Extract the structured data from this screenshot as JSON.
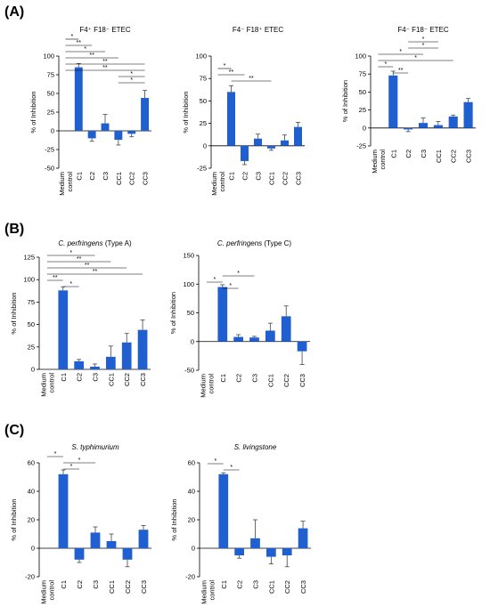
{
  "panels": [
    {
      "label": "(A)"
    },
    {
      "label": "(B)"
    },
    {
      "label": "(C)"
    }
  ],
  "colors": {
    "bar": "#1f5fd0",
    "axis": "#000000"
  },
  "chart_data": [
    {
      "type": "bar",
      "panel": "A",
      "title": "F4⁺ F18⁻ ETEC",
      "title_italic": "",
      "ylabel": "% of Inhibition",
      "categories": [
        "Medium control",
        "C1",
        "C2",
        "C3",
        "CC1",
        "CC2",
        "CC3"
      ],
      "values": [
        0,
        85,
        -10,
        10,
        -12,
        -4,
        44
      ],
      "errors": [
        0,
        5,
        4,
        12,
        7,
        4,
        10
      ],
      "ylim": [
        -50,
        100
      ],
      "yticks": [
        -50,
        -25,
        0,
        25,
        50,
        75,
        100
      ],
      "significance": [
        {
          "from": 0,
          "to": 1,
          "label": "*"
        },
        {
          "from": 0,
          "to": 2,
          "label": "**"
        },
        {
          "from": 0,
          "to": 3,
          "label": "*"
        },
        {
          "from": 0,
          "to": 4,
          "label": "**"
        },
        {
          "from": 0,
          "to": 6,
          "label": "**"
        },
        {
          "from": 0,
          "to": 6,
          "label": "**"
        },
        {
          "from": 4,
          "to": 6,
          "label": "*"
        },
        {
          "from": 4,
          "to": 6,
          "label": "*"
        }
      ]
    },
    {
      "type": "bar",
      "panel": "A",
      "title": "F4⁻ F18⁺ ETEC",
      "title_italic": "",
      "ylabel": "% of Inhibition",
      "categories": [
        "Medium control",
        "C1",
        "C2",
        "C3",
        "CC1",
        "CC2",
        "CC3"
      ],
      "values": [
        0,
        60,
        -17,
        8,
        -3,
        6,
        21
      ],
      "errors": [
        0,
        7,
        4,
        5,
        2,
        6,
        5
      ],
      "ylim": [
        -25,
        100
      ],
      "yticks": [
        -25,
        0,
        25,
        50,
        75,
        100
      ],
      "significance": [
        {
          "from": 0,
          "to": 1,
          "label": "*"
        },
        {
          "from": 0,
          "to": 2,
          "label": "**"
        },
        {
          "from": 1,
          "to": 4,
          "label": "**"
        }
      ]
    },
    {
      "type": "bar",
      "panel": "A",
      "title": "F4⁻ F18⁻ ETEC",
      "title_italic": "",
      "ylabel": "% of Inhibition",
      "categories": [
        "Medium control",
        "C1",
        "C2",
        "C3",
        "CC1",
        "CC2",
        "CC3"
      ],
      "values": [
        0,
        73,
        -2,
        7,
        4,
        16,
        36
      ],
      "errors": [
        0,
        6,
        3,
        7,
        5,
        2,
        5
      ],
      "ylim": [
        -25,
        100
      ],
      "yticks": [
        -25,
        0,
        25,
        50,
        75,
        100
      ],
      "significance": [
        {
          "from": 2,
          "to": 4,
          "label": "*"
        },
        {
          "from": 2,
          "to": 4,
          "label": "*"
        },
        {
          "from": 0,
          "to": 3,
          "label": "*"
        },
        {
          "from": 0,
          "to": 5,
          "label": "*"
        },
        {
          "from": 0,
          "to": 1,
          "label": "*"
        },
        {
          "from": 1,
          "to": 2,
          "label": "**"
        }
      ]
    },
    {
      "type": "bar",
      "panel": "B",
      "title": "(Type A)",
      "title_italic": "C. perfringens",
      "ylabel": "% of Inhibition",
      "categories": [
        "Medium control",
        "C1",
        "C2",
        "C3",
        "CC1",
        "CC2",
        "CC3"
      ],
      "values": [
        0,
        88,
        9,
        3,
        14,
        30,
        44
      ],
      "errors": [
        0,
        4,
        2,
        3,
        12,
        10,
        11
      ],
      "ylim": [
        0,
        125
      ],
      "yticks": [
        0,
        25,
        50,
        75,
        100,
        125
      ],
      "significance": [
        {
          "from": 0,
          "to": 3,
          "label": "*"
        },
        {
          "from": 0,
          "to": 4,
          "label": "**"
        },
        {
          "from": 0,
          "to": 5,
          "label": "**"
        },
        {
          "from": 0,
          "to": 6,
          "label": "**"
        },
        {
          "from": 0,
          "to": 1,
          "label": "**"
        },
        {
          "from": 1,
          "to": 2,
          "label": "*"
        }
      ]
    },
    {
      "type": "bar",
      "panel": "B",
      "title": "(Type C)",
      "title_italic": "C. perfringens",
      "ylabel": "% of Inhibition",
      "categories": [
        "Medium control",
        "C1",
        "C2",
        "C3",
        "CC1",
        "CC2",
        "CC3"
      ],
      "values": [
        0,
        95,
        8,
        7,
        19,
        44,
        -17
      ],
      "errors": [
        0,
        4,
        4,
        2,
        13,
        18,
        23
      ],
      "ylim": [
        -50,
        150
      ],
      "yticks": [
        -50,
        0,
        50,
        100,
        150
      ],
      "significance": [
        {
          "from": 1,
          "to": 3,
          "label": "*"
        },
        {
          "from": 0,
          "to": 1,
          "label": "*"
        },
        {
          "from": 1,
          "to": 2,
          "label": "*"
        }
      ]
    },
    {
      "type": "bar",
      "panel": "C",
      "title": "",
      "title_italic": "S. typhimurium",
      "ylabel": "% of Inhibition",
      "categories": [
        "Medium control",
        "C1",
        "C2",
        "C3",
        "CC1",
        "CC2",
        "CC3"
      ],
      "values": [
        0,
        52,
        -8,
        11,
        5,
        -8,
        13
      ],
      "errors": [
        0,
        3,
        2,
        4,
        5,
        5,
        3
      ],
      "ylim": [
        -20,
        60
      ],
      "yticks": [
        -20,
        0,
        20,
        40,
        60
      ],
      "significance": [
        {
          "from": 0,
          "to": 1,
          "label": "*"
        },
        {
          "from": 1,
          "to": 3,
          "label": "*"
        },
        {
          "from": 1,
          "to": 2,
          "label": "*"
        }
      ]
    },
    {
      "type": "bar",
      "panel": "C",
      "title": "",
      "title_italic": "S. livingstone",
      "ylabel": "% of Inhibition",
      "categories": [
        "Medium control",
        "C1",
        "C2",
        "C3",
        "CC1",
        "CC2",
        "CC3"
      ],
      "values": [
        0,
        52,
        -5,
        7,
        -6,
        -5,
        14
      ],
      "errors": [
        0,
        1,
        2,
        13,
        5,
        8,
        5
      ],
      "ylim": [
        -20,
        60
      ],
      "yticks": [
        -20,
        0,
        20,
        40,
        60
      ],
      "significance": [
        {
          "from": 0,
          "to": 1,
          "label": "*"
        },
        {
          "from": 1,
          "to": 2,
          "label": "*"
        }
      ]
    }
  ]
}
